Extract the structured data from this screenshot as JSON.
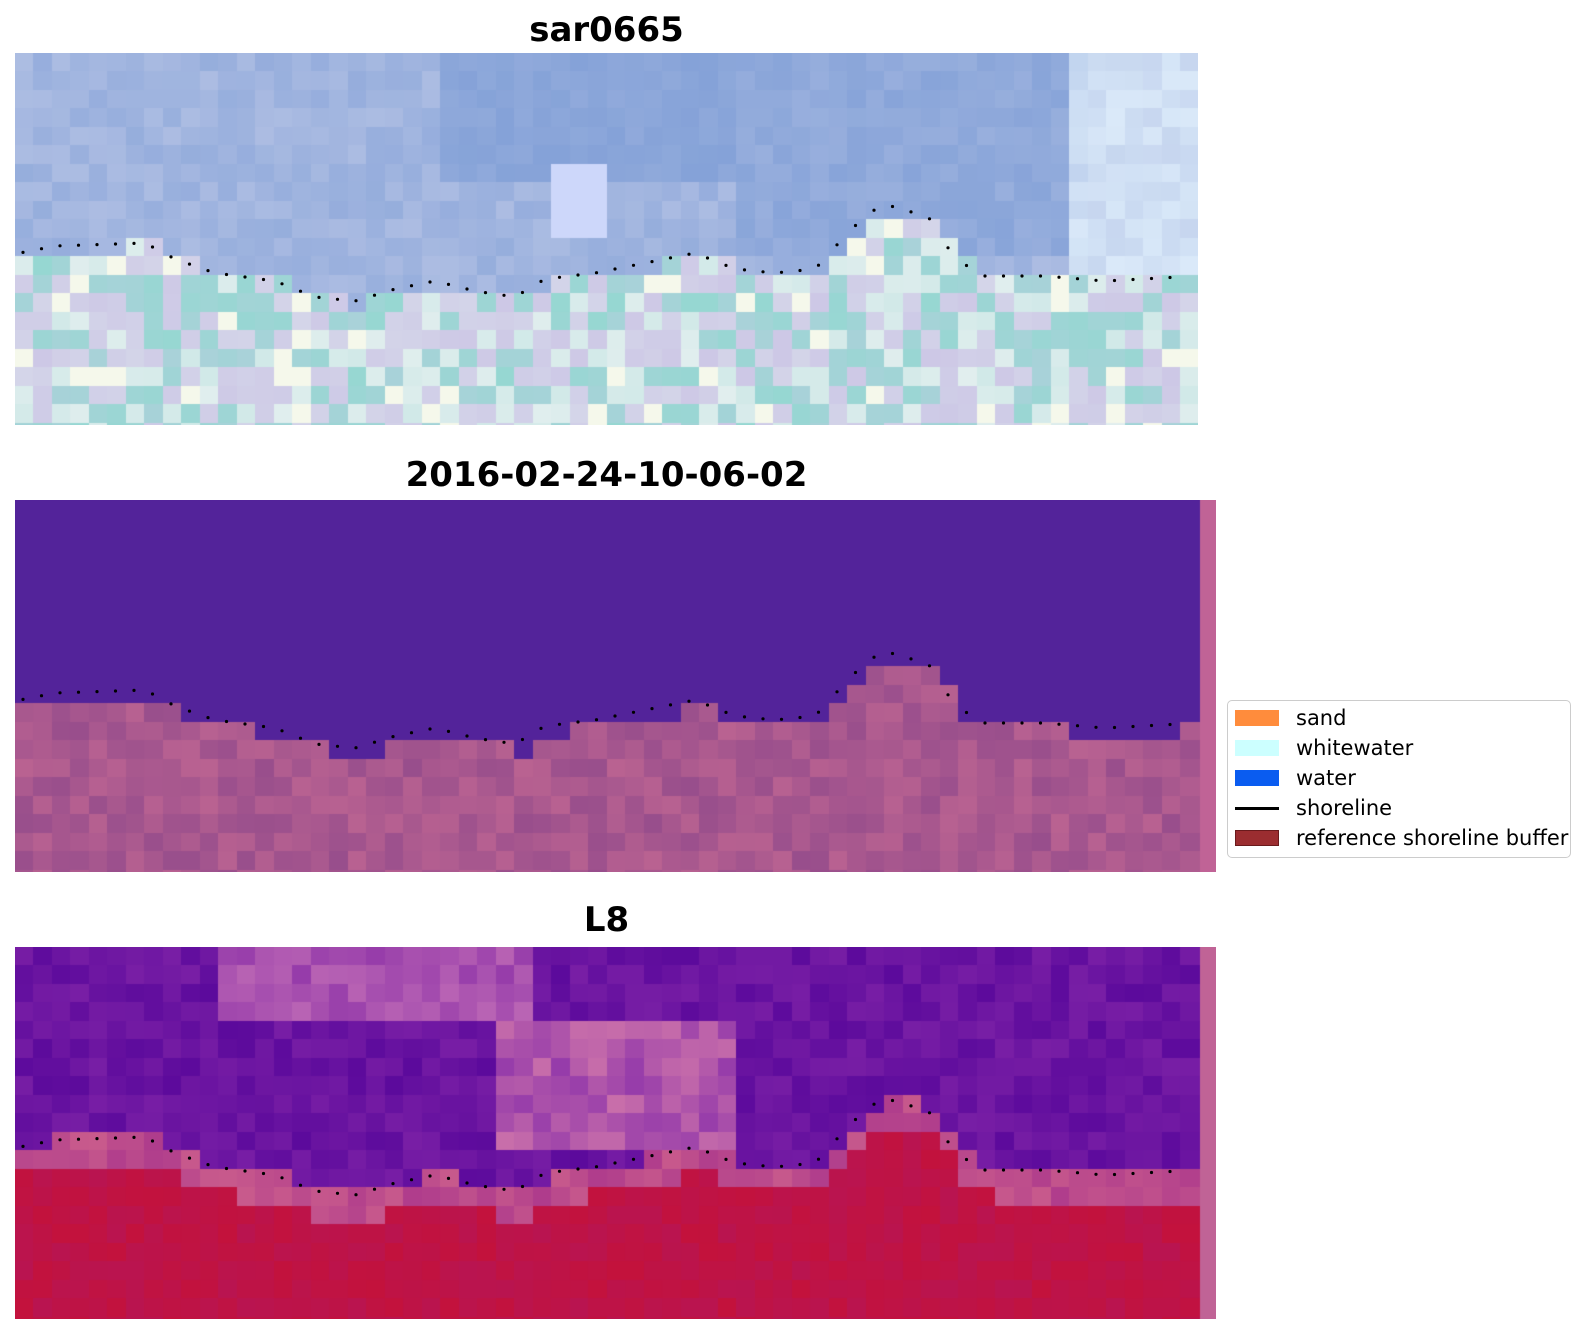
{
  "panels": [
    {
      "title": "sar0665",
      "kind": "sar"
    },
    {
      "title": "2016-02-24-10-06-02",
      "kind": "classified"
    },
    {
      "title": "L8",
      "kind": "index"
    }
  ],
  "legend": {
    "items": [
      {
        "label": "sand",
        "color": "#ff8c3c",
        "type": "patch"
      },
      {
        "label": "whitewater",
        "color": "#ccffff",
        "type": "patch"
      },
      {
        "label": "water",
        "color": "#0a5cf0",
        "type": "patch"
      },
      {
        "label": "shoreline",
        "color": "#000000",
        "type": "line"
      },
      {
        "label": "reference shoreline buffer",
        "color": "#9b2d30",
        "type": "patch"
      }
    ]
  },
  "colors": {
    "shoreline_dots": "#000000",
    "classified_water": "#53239a",
    "classified_land": "#a1548d",
    "edge_strip": "#c06396",
    "index_top": "#5b0b9c",
    "index_bottom": "#c20a3a"
  }
}
